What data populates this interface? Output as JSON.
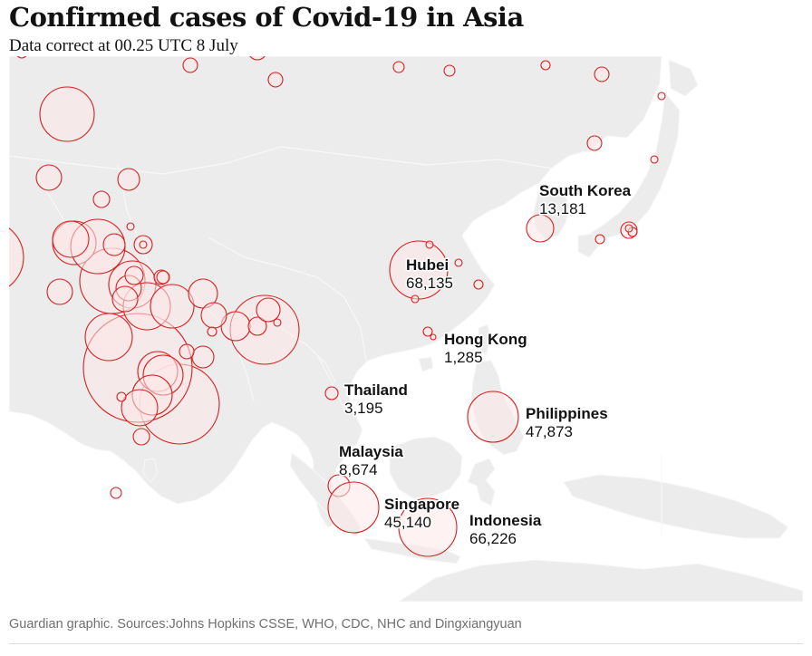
{
  "header": {
    "title": "Confirmed cases of Covid-19 in Asia",
    "subtitle": "Data correct at 00.25 UTC 8 July"
  },
  "footer": {
    "source": "Guardian graphic. Sources:Johns Hopkins CSSE, WHO, CDC, NHC and Dingxiangyuan"
  },
  "colors": {
    "ocean": "#ffffff",
    "land": "#ececec",
    "land_highlight": "#e2e2e2",
    "bubble_stroke": "#d62020",
    "bubble_fill": "#fde8e8"
  },
  "locations": [
    {
      "name": "South Korea",
      "value": "13,181"
    },
    {
      "name": "Hubei",
      "value": "68,135"
    },
    {
      "name": "Hong Kong",
      "value": "1,285"
    },
    {
      "name": "Thailand",
      "value": "3,195"
    },
    {
      "name": "Philippines",
      "value": "47,873"
    },
    {
      "name": "Malaysia",
      "value": "8,674"
    },
    {
      "name": "Singapore",
      "value": "45,140"
    },
    {
      "name": "Indonesia",
      "value": "66,226"
    }
  ]
}
